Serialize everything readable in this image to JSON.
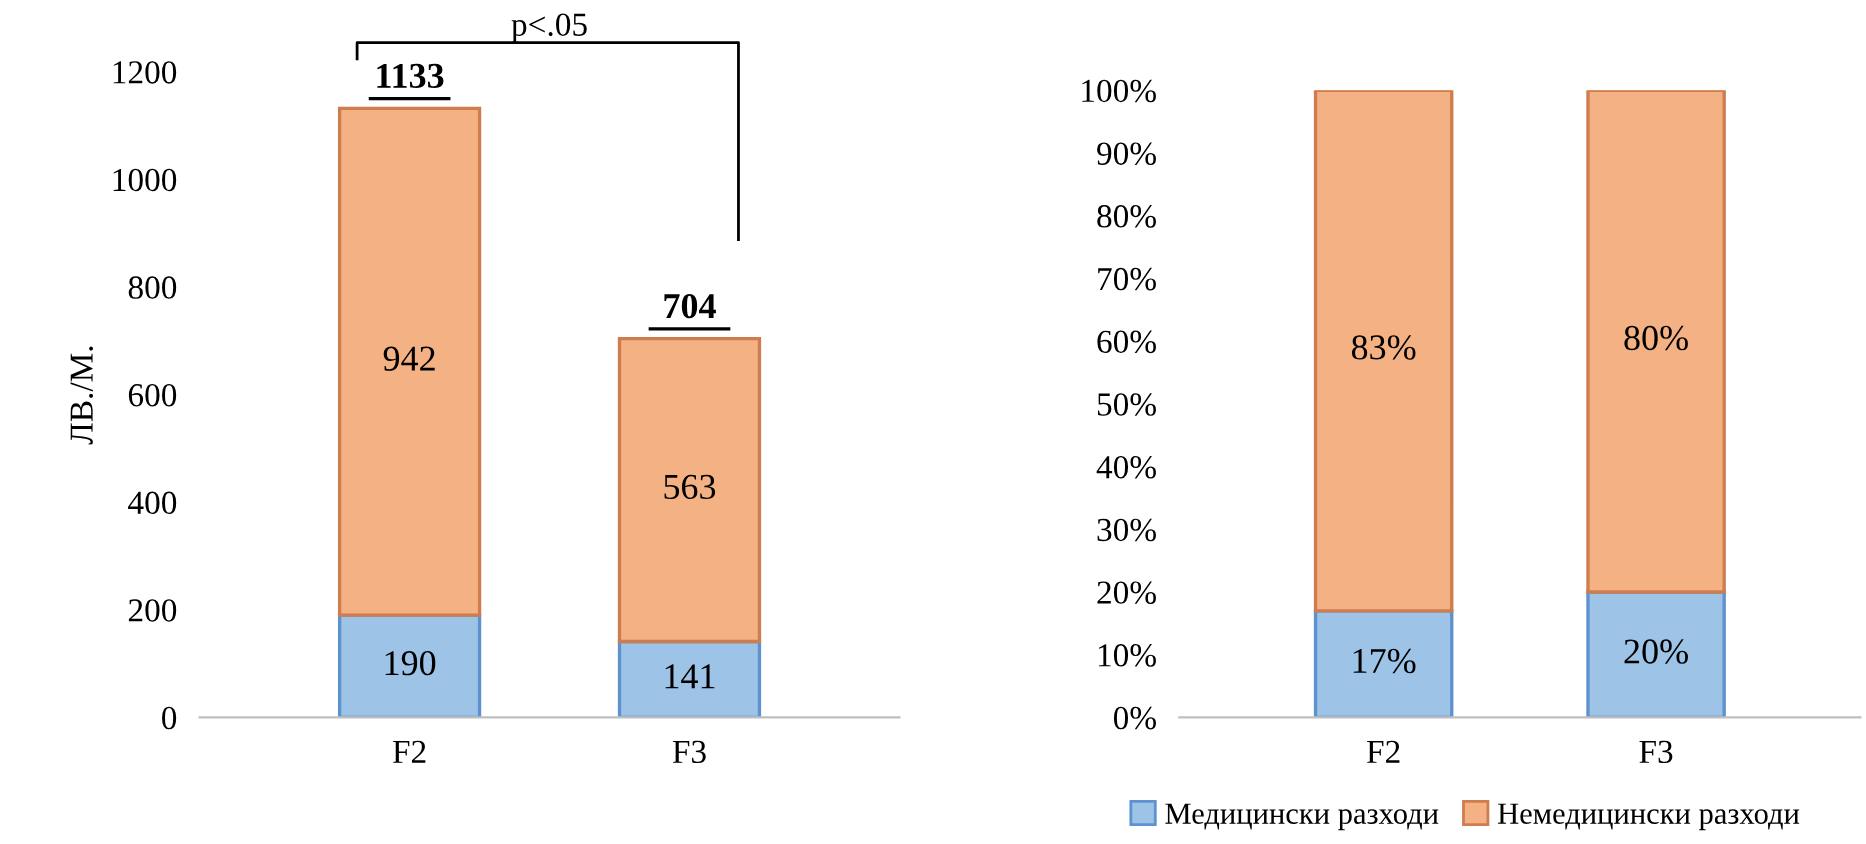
{
  "chart_data": [
    {
      "type": "bar",
      "stacked": true,
      "ylabel": "ЛВ./М.",
      "categories": [
        "F2",
        "F3"
      ],
      "series": [
        {
          "color": "#9dc3e6",
          "values": [
            190,
            141
          ]
        },
        {
          "color": "#f4b183",
          "values": [
            942,
            563
          ]
        }
      ],
      "ylim": [
        0,
        1200
      ],
      "yticks": [
        0,
        200,
        400,
        600,
        800,
        1000,
        1200
      ],
      "data_labels": true,
      "totals": [
        "1133",
        "704"
      ],
      "annotations": [
        "p<.05"
      ],
      "grid": false,
      "legend": false
    },
    {
      "type": "bar",
      "stacked": true,
      "categories": [
        "F2",
        "F3"
      ],
      "series": [
        {
          "name": "Медицински разходи",
          "color": "#9dc3e6",
          "values": [
            17,
            20
          ],
          "value_labels": [
            "17%",
            "20%"
          ]
        },
        {
          "name": "Немедицински разходи",
          "color": "#f4b183",
          "values": [
            83,
            80
          ],
          "value_labels": [
            "83%",
            "80%"
          ]
        }
      ],
      "ylim": [
        0,
        100
      ],
      "yticks": [
        {
          "value": 0,
          "label": "0%"
        },
        {
          "value": 10,
          "label": "10%"
        },
        {
          "value": 20,
          "label": "20%"
        },
        {
          "value": 30,
          "label": "30%"
        },
        {
          "value": 40,
          "label": "40%"
        },
        {
          "value": 50,
          "label": "50%"
        },
        {
          "value": 60,
          "label": "60%"
        },
        {
          "value": 70,
          "label": "70%"
        },
        {
          "value": 80,
          "label": "80%"
        },
        {
          "value": 90,
          "label": "90%"
        },
        {
          "value": 100,
          "label": "100%"
        }
      ],
      "grid": false,
      "legend": "bottom"
    }
  ]
}
